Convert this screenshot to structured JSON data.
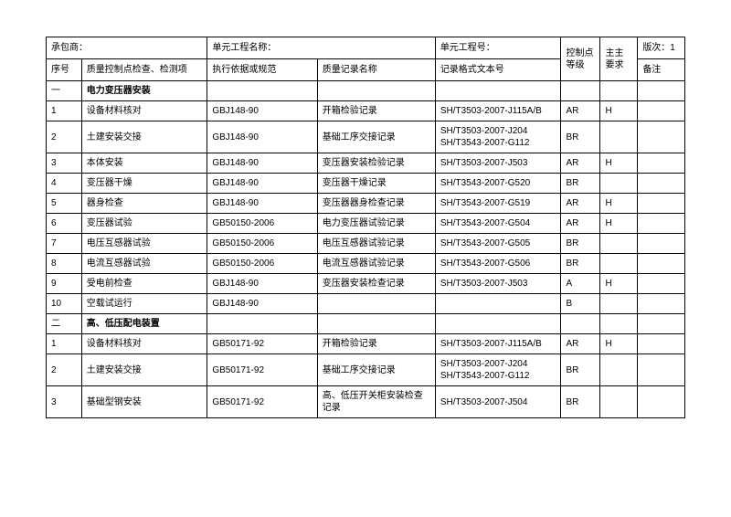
{
  "header": {
    "contractor": "承包商：",
    "unitName": "单元工程名称：",
    "unitNo": "单元工程号：",
    "controlLevel": "控制点等级",
    "owner": "主主要求",
    "version": "版次：1",
    "seq": "序号",
    "item": "质量控制点检查、检测项",
    "basis": "执行依据或规范",
    "record": "质量记录名称",
    "format": "记录格式文本号",
    "remark": "备注"
  },
  "sections": [
    {
      "seq": "一",
      "title": "电力变压器安装"
    },
    {
      "seq": "二",
      "title": "高、低压配电装置"
    }
  ],
  "rows1": [
    {
      "seq": "1",
      "item": "设备材料核对",
      "basis": "GBJ148-90",
      "record": "开箱检验记录",
      "format": "SH/T3503-2007-J115A/B",
      "level": "AR",
      "owner": "H"
    },
    {
      "seq": "2",
      "item": "土建安装交接",
      "basis": "GBJ148-90",
      "record": "基础工序交接记录",
      "format": "SH/T3503-2007-J204\nSH/T3543-2007-G112",
      "level": "BR",
      "owner": ""
    },
    {
      "seq": "3",
      "item": "本体安装",
      "basis": "GBJ148-90",
      "record": "变压器安装检验记录",
      "format": "SH/T3503-2007-J503",
      "level": "AR",
      "owner": "H"
    },
    {
      "seq": "4",
      "item": "变压器干燥",
      "basis": "GBJ148-90",
      "record": "变压器干燥记录",
      "format": "SH/T3543-2007-G520",
      "level": "BR",
      "owner": ""
    },
    {
      "seq": "5",
      "item": "器身检查",
      "basis": "GBJ148-90",
      "record": "变压器器身检查记录",
      "format": "SH/T3543-2007-G519",
      "level": "AR",
      "owner": "H"
    },
    {
      "seq": "6",
      "item": "变压器试验",
      "basis": "GB50150-2006",
      "record": "电力变压器试验记录",
      "format": "SH/T3543-2007-G504",
      "level": "AR",
      "owner": "H"
    },
    {
      "seq": "7",
      "item": "电压互感器试验",
      "basis": "GB50150-2006",
      "record": "电压互感器试验记录",
      "format": "SH/T3543-2007-G505",
      "level": "BR",
      "owner": ""
    },
    {
      "seq": "8",
      "item": "电流互感器试验",
      "basis": "GB50150-2006",
      "record": "电流互感器试验记录",
      "format": "SH/T3543-2007-G506",
      "level": "BR",
      "owner": ""
    },
    {
      "seq": "9",
      "item": "受电前检查",
      "basis": "GBJ148-90",
      "record": "变压器安装检查记录",
      "format": "SH/T3503-2007-J503",
      "level": "A",
      "owner": "H"
    },
    {
      "seq": "10",
      "item": "空载试运行",
      "basis": "GBJ148-90",
      "record": "",
      "format": "",
      "level": "B",
      "owner": ""
    }
  ],
  "rows2": [
    {
      "seq": "1",
      "item": "设备材料核对",
      "basis": "GB50171-92",
      "record": "开箱检验记录",
      "format": "SH/T3503-2007-J115A/B",
      "level": "AR",
      "owner": "H"
    },
    {
      "seq": "2",
      "item": "土建安装交接",
      "basis": "GB50171-92",
      "record": "基础工序交接记录",
      "format": "SH/T3503-2007-J204\nSH/T3543-2007-G112",
      "level": "BR",
      "owner": ""
    },
    {
      "seq": "3",
      "item": "基础型钢安装",
      "basis": "GB50171-92",
      "record": "高、低压开关柜安装检查记录",
      "format": "SH/T3503-2007-J504",
      "level": "BR",
      "owner": ""
    }
  ]
}
